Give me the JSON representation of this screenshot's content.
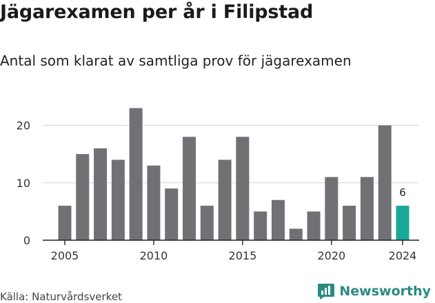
{
  "header": {
    "title": "Jägarexamen per år i Filipstad",
    "subtitle": "Antal som klarat av samtliga prov för jägarexamen"
  },
  "footer": {
    "source": "Källa: Naturvårdsverket",
    "brand": "Newsworthy"
  },
  "colors": {
    "bar": "#717075",
    "highlight": "#1aa898",
    "grid": "#d9d9d9",
    "axis": "#222222",
    "brand": "#2a8a80"
  },
  "chart_data": {
    "type": "bar",
    "title": "Jägarexamen per år i Filipstad",
    "subtitle": "Antal som klarat av samtliga prov för jägarexamen",
    "xlabel": "",
    "ylabel": "",
    "x": [
      2005,
      2006,
      2007,
      2008,
      2009,
      2010,
      2011,
      2012,
      2013,
      2014,
      2015,
      2016,
      2017,
      2018,
      2019,
      2020,
      2021,
      2022,
      2023,
      2024
    ],
    "values": [
      6,
      15,
      16,
      14,
      23,
      13,
      9,
      18,
      6,
      14,
      18,
      5,
      7,
      2,
      5,
      11,
      6,
      11,
      20,
      6
    ],
    "highlight_x": 2024,
    "highlight_label": "6",
    "ylim": [
      0,
      25
    ],
    "yticks": [
      "0",
      "10",
      "20"
    ],
    "xticks": [
      "2005",
      "2010",
      "2015",
      "2020",
      "2024"
    ],
    "grid": true,
    "legend": "none"
  }
}
